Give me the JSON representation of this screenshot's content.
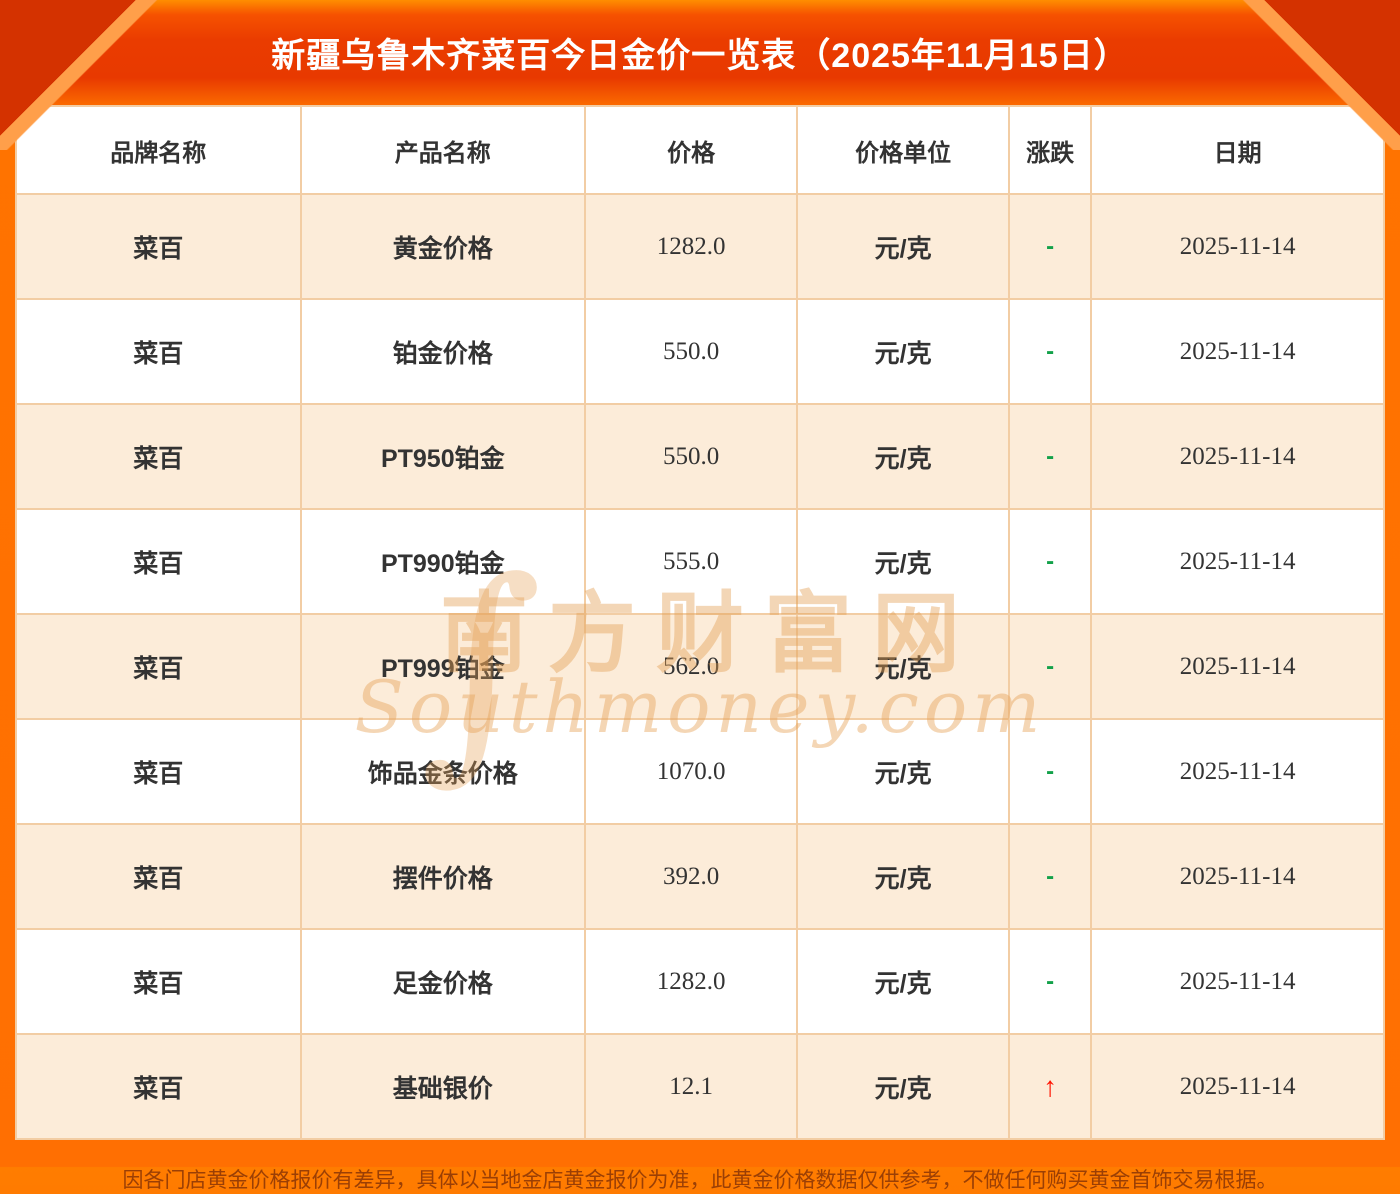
{
  "page": {
    "title": "新疆乌鲁木齐菜百今日金价一览表（2025年11月15日）",
    "footer_disclaimer": "因各门店黄金价格报价有差异，具体以当地金店黄金报价为准，此黄金价格数据仅供参考，不做任何购买黄金首饰交易根据。"
  },
  "table": {
    "columns": [
      "品牌名称",
      "产品名称",
      "价格",
      "价格单位",
      "涨跌",
      "日期"
    ],
    "rows": [
      {
        "brand": "菜百",
        "product": "黄金价格",
        "price": "1282.0",
        "unit": "元/克",
        "change": "-",
        "trend": "flat",
        "date": "2025-11-14"
      },
      {
        "brand": "菜百",
        "product": "铂金价格",
        "price": "550.0",
        "unit": "元/克",
        "change": "-",
        "trend": "flat",
        "date": "2025-11-14"
      },
      {
        "brand": "菜百",
        "product": "PT950铂金",
        "price": "550.0",
        "unit": "元/克",
        "change": "-",
        "trend": "flat",
        "date": "2025-11-14"
      },
      {
        "brand": "菜百",
        "product": "PT990铂金",
        "price": "555.0",
        "unit": "元/克",
        "change": "-",
        "trend": "flat",
        "date": "2025-11-14"
      },
      {
        "brand": "菜百",
        "product": "PT999铂金",
        "price": "562.0",
        "unit": "元/克",
        "change": "-",
        "trend": "flat",
        "date": "2025-11-14"
      },
      {
        "brand": "菜百",
        "product": "饰品金条价格",
        "price": "1070.0",
        "unit": "元/克",
        "change": "-",
        "trend": "flat",
        "date": "2025-11-14"
      },
      {
        "brand": "菜百",
        "product": "摆件价格",
        "price": "392.0",
        "unit": "元/克",
        "change": "-",
        "trend": "flat",
        "date": "2025-11-14"
      },
      {
        "brand": "菜百",
        "product": "足金价格",
        "price": "1282.0",
        "unit": "元/克",
        "change": "-",
        "trend": "flat",
        "date": "2025-11-14"
      },
      {
        "brand": "菜百",
        "product": "基础银价",
        "price": "12.1",
        "unit": "元/克",
        "change": "↑",
        "trend": "up",
        "date": "2025-11-14"
      }
    ]
  },
  "watermark": {
    "swirl_glyph": "∫",
    "cn": "南方财富网",
    "en": "Southmoney.com"
  },
  "colors": {
    "page_bg": "#ff7300",
    "header_band": "#e83900",
    "corner_decoration": "#d43200",
    "row_alt_bg": "#fcecd9",
    "table_border": "#f2cda4",
    "flat_green": "#13a14a",
    "up_red": "#ff1200",
    "footer_text": "#9b3f05",
    "title_text": "#ffffff"
  }
}
